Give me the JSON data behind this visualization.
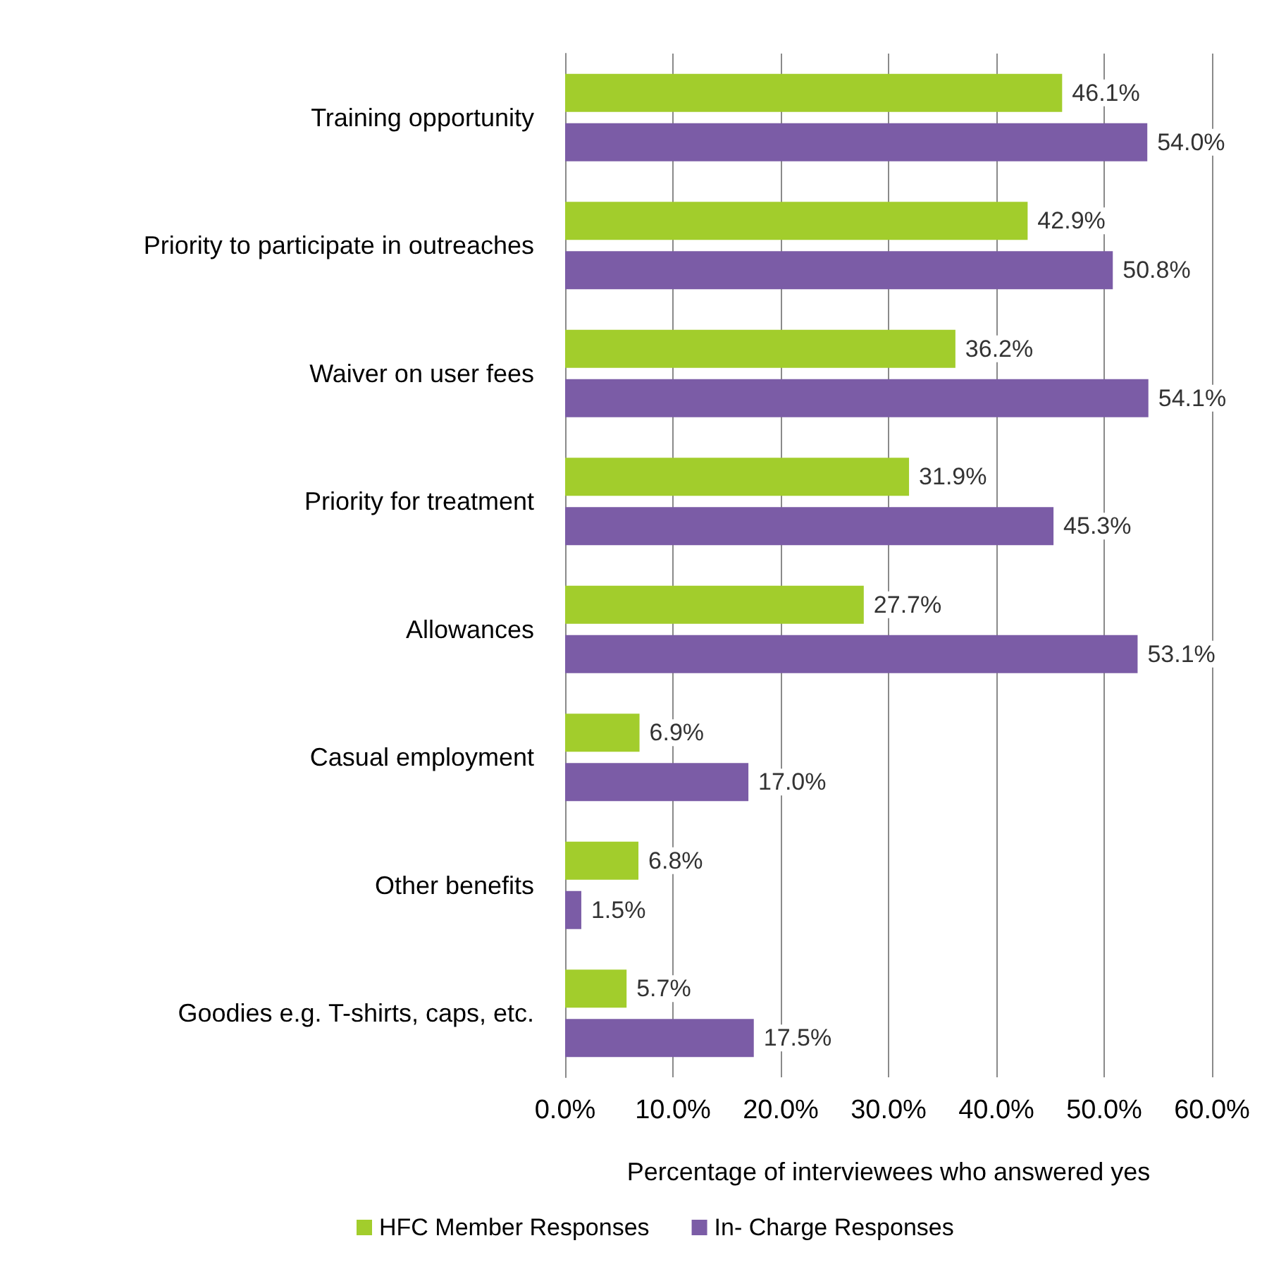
{
  "chart_data": {
    "type": "bar",
    "orientation": "horizontal",
    "xlabel": "Percentage of interviewees who answered yes",
    "categories": [
      "Training opportunity",
      "Priority to participate in outreaches",
      "Waiver on user fees",
      "Priority for treatment",
      "Allowances",
      "Casual employment",
      "Other benefits",
      "Goodies e.g. T-shirts, caps, etc."
    ],
    "series": [
      {
        "name": "HFC Member Responses",
        "color": "#a2cd2c",
        "values": [
          46.1,
          42.9,
          36.2,
          31.9,
          27.7,
          6.9,
          6.8,
          5.7
        ],
        "value_labels": [
          "46.1%",
          "42.9%",
          "36.2%",
          "31.9%",
          "27.7%",
          "6.9%",
          "6.8%",
          "5.7%"
        ]
      },
      {
        "name": "In- Charge Responses",
        "color": "#7b5ca6",
        "values": [
          54.0,
          50.8,
          54.1,
          45.3,
          53.1,
          17.0,
          1.5,
          17.5
        ],
        "value_labels": [
          "54.0%",
          "50.8%",
          "54.1%",
          "45.3%",
          "53.1%",
          "17.0%",
          "1.5%",
          "17.5%"
        ]
      }
    ],
    "xlim": [
      0,
      60
    ],
    "xticks": [
      {
        "value": 0,
        "label": "0.0%"
      },
      {
        "value": 10,
        "label": "10.0%"
      },
      {
        "value": 20,
        "label": "20.0%"
      },
      {
        "value": 30,
        "label": "30.0%"
      },
      {
        "value": 40,
        "label": "40.0%"
      },
      {
        "value": 50,
        "label": "50.0%"
      },
      {
        "value": 60,
        "label": "60.0%"
      }
    ],
    "grid": "x",
    "legend": "bottom"
  }
}
